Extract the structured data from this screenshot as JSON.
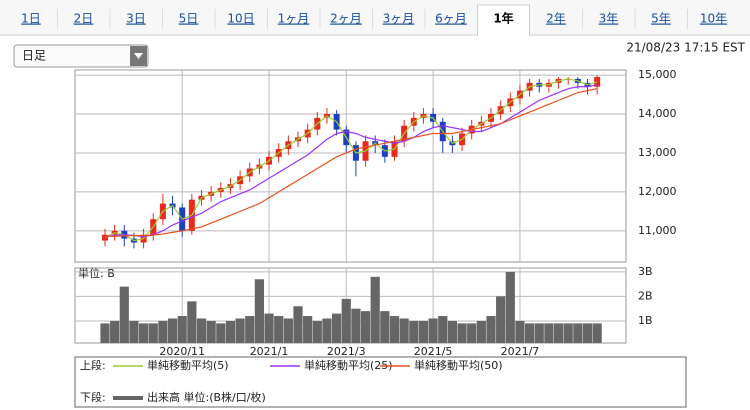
{
  "tabs": [
    "1日",
    "2日",
    "3日",
    "5日",
    "10日",
    "1ヶ月",
    "2ヶ月",
    "3ヶ月",
    "6ヶ月",
    "1年",
    "2年",
    "3年",
    "5年",
    "10年"
  ],
  "active_tab": 9,
  "dropdown": "日足",
  "timestamp": "21/08/23 17:15 EST",
  "chart_data": [
    {
      "type": "candlestick",
      "legend_title": "上段:",
      "up_color": "#e8291c",
      "down_color": "#1f3fbf",
      "open": [
        10750,
        10900,
        11000,
        10800,
        10700,
        10900,
        11300,
        11700,
        11600,
        11000,
        11800,
        11900,
        12000,
        12100,
        12200,
        12400,
        12600,
        12700,
        12900,
        13100,
        13300,
        13400,
        13600,
        13900,
        14000,
        13600,
        13200,
        12800,
        13300,
        13200,
        12900,
        13300,
        13700,
        13900,
        14000,
        13800,
        13300,
        13200,
        13500,
        13700,
        13800,
        14000,
        14200,
        14400,
        14600,
        14800,
        14700,
        14800,
        14900,
        14900,
        14800,
        14700
      ],
      "high": [
        11050,
        11150,
        11150,
        10950,
        11050,
        11450,
        11950,
        11900,
        11700,
        11950,
        12050,
        12150,
        12250,
        12350,
        12550,
        12750,
        12850,
        13050,
        13250,
        13450,
        13550,
        13750,
        14050,
        14150,
        14100,
        13700,
        13300,
        13450,
        13450,
        13350,
        13450,
        13850,
        14050,
        14150,
        14150,
        13900,
        13450,
        13650,
        13850,
        13950,
        14150,
        14350,
        14550,
        14750,
        14900,
        14900,
        14900,
        14950,
        14950,
        14950,
        14900,
        15000
      ],
      "low": [
        10600,
        10750,
        10600,
        10550,
        10550,
        10750,
        11150,
        11400,
        10850,
        10900,
        11650,
        11750,
        11850,
        11950,
        12050,
        12250,
        12450,
        12550,
        12750,
        12950,
        13150,
        13250,
        13450,
        13750,
        13450,
        13000,
        12400,
        12650,
        13000,
        12750,
        12800,
        13150,
        13550,
        13750,
        13650,
        13000,
        13000,
        13050,
        13350,
        13550,
        13650,
        13850,
        14050,
        14250,
        14450,
        14550,
        14550,
        14650,
        14750,
        14650,
        14500,
        14500
      ],
      "close": [
        10900,
        11000,
        10800,
        10700,
        10900,
        11300,
        11700,
        11600,
        11000,
        11800,
        11900,
        12000,
        12100,
        12200,
        12400,
        12600,
        12700,
        12900,
        13100,
        13300,
        13400,
        13600,
        13900,
        14000,
        13600,
        13200,
        12800,
        13300,
        13200,
        12900,
        13300,
        13700,
        13900,
        14000,
        13800,
        13300,
        13200,
        13500,
        13700,
        13800,
        14000,
        14200,
        14400,
        14600,
        14800,
        14700,
        14800,
        14900,
        14900,
        14800,
        14700,
        14950
      ],
      "series": [
        {
          "name": "単純移動平均(5)",
          "color": "#9acd32",
          "values": [
            10830,
            10950,
            10900,
            10750,
            10800,
            11100,
            11500,
            11650,
            11300,
            11400,
            11850,
            11950,
            12050,
            12150,
            12300,
            12500,
            12650,
            12800,
            13000,
            13200,
            13350,
            13500,
            13750,
            13950,
            13800,
            13400,
            13000,
            13050,
            13250,
            13050,
            13100,
            13500,
            13800,
            13950,
            13900,
            13550,
            13250,
            13350,
            13600,
            13750,
            13900,
            14100,
            14300,
            14500,
            14700,
            14750,
            14750,
            14850,
            14900,
            14850,
            14750,
            14820
          ]
        },
        {
          "name": "単純移動平均(25)",
          "color": "#9933ff",
          "values": [
            10850,
            10880,
            10900,
            10880,
            10850,
            10900,
            11000,
            11150,
            11250,
            11350,
            11450,
            11600,
            11750,
            11850,
            11950,
            12050,
            12200,
            12350,
            12500,
            12650,
            12800,
            12950,
            13150,
            13350,
            13500,
            13550,
            13500,
            13400,
            13350,
            13300,
            13250,
            13300,
            13400,
            13550,
            13650,
            13700,
            13650,
            13600,
            13550,
            13550,
            13650,
            13750,
            13900,
            14050,
            14200,
            14350,
            14450,
            14550,
            14650,
            14700,
            14700,
            14750
          ]
        },
        {
          "name": "単純移動平均(50)",
          "color": "#e85020",
          "values": [
            10850,
            10860,
            10870,
            10880,
            10880,
            10890,
            10920,
            10960,
            11000,
            11050,
            11100,
            11200,
            11300,
            11400,
            11500,
            11600,
            11700,
            11850,
            12000,
            12150,
            12300,
            12450,
            12600,
            12750,
            12900,
            13000,
            13100,
            13150,
            13200,
            13250,
            13300,
            13350,
            13400,
            13450,
            13500,
            13500,
            13500,
            13550,
            13600,
            13650,
            13700,
            13750,
            13850,
            13950,
            14050,
            14150,
            14250,
            14350,
            14450,
            14550,
            14600,
            14650
          ]
        }
      ],
      "ylim": [
        10200,
        15130
      ],
      "yticks": [
        {
          "value": 11000,
          "label": "11,000"
        },
        {
          "value": 12000,
          "label": "12,000"
        },
        {
          "value": 13000,
          "label": "13,000"
        },
        {
          "value": 14000,
          "label": "14,000"
        },
        {
          "value": 15000,
          "label": "15,000"
        }
      ],
      "grid": true
    },
    {
      "type": "bar",
      "legend_title": "下段:",
      "unit_label": "単位: B",
      "categories": [
        null,
        null,
        null,
        null,
        null,
        null,
        null,
        null,
        "2020/11",
        null,
        null,
        null,
        null,
        null,
        null,
        null,
        null,
        "2021/1",
        null,
        null,
        null,
        null,
        null,
        null,
        null,
        "2021/3",
        null,
        null,
        null,
        null,
        null,
        null,
        null,
        null,
        "2021/5",
        null,
        null,
        null,
        null,
        null,
        null,
        null,
        null,
        "2021/7",
        null,
        null,
        null,
        null,
        null,
        null,
        null,
        null
      ],
      "series": [
        {
          "name": "出来高 単位:(B株/口/枚)",
          "color": "#666666",
          "values": [
            0.9,
            1.0,
            2.4,
            1.0,
            0.9,
            0.9,
            1.0,
            1.1,
            1.2,
            1.8,
            1.1,
            1.0,
            0.9,
            1.0,
            1.1,
            1.2,
            2.7,
            1.3,
            1.2,
            1.1,
            1.6,
            1.2,
            1.0,
            1.1,
            1.3,
            1.9,
            1.5,
            1.4,
            2.8,
            1.4,
            1.2,
            1.1,
            1.0,
            1.0,
            1.1,
            1.2,
            1.0,
            0.9,
            0.9,
            1.0,
            1.2,
            2.0,
            3.0,
            1.0,
            0.9,
            0.9,
            0.9,
            0.9,
            0.9,
            0.9,
            0.9,
            0.9
          ]
        }
      ],
      "ylim": [
        0.1,
        3.16
      ],
      "yticks": [
        {
          "value": 1,
          "label": "1B"
        },
        {
          "value": 2,
          "label": "2B"
        },
        {
          "value": 3,
          "label": "3B"
        }
      ],
      "grid": true
    }
  ]
}
